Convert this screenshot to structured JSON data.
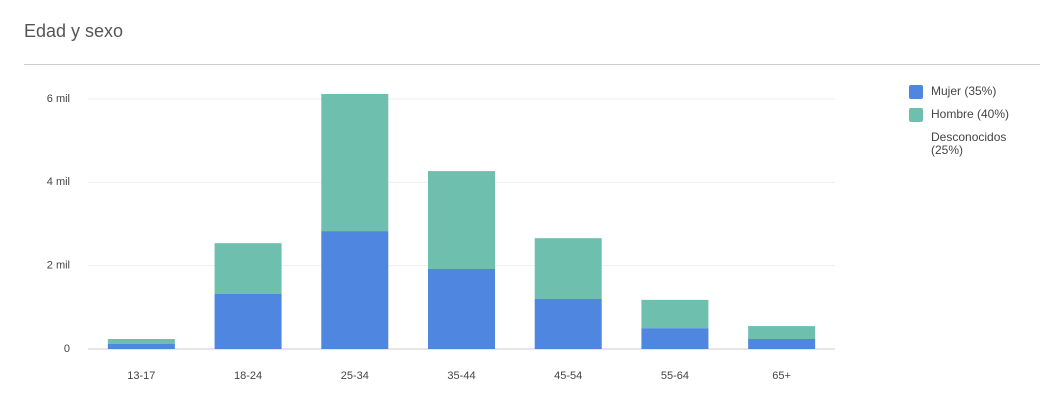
{
  "chart_data": {
    "type": "stacked-bar",
    "title": "Edad y sexo",
    "categories": [
      "13-17",
      "18-24",
      "25-34",
      "35-44",
      "45-54",
      "55-64",
      "65+"
    ],
    "series": [
      {
        "name": "Mujer (35%)",
        "color": "#4f86e0",
        "values": [
          120,
          1320,
          2830,
          1920,
          1200,
          500,
          240
        ]
      },
      {
        "name": "Hombre (40%)",
        "color": "#6fbfae",
        "values": [
          120,
          1220,
          3290,
          2350,
          1460,
          680,
          310
        ]
      }
    ],
    "legend_extra_entries": [
      "Desconocidos (25%)"
    ],
    "ylim": [
      0,
      6000
    ],
    "yticks": [
      0,
      {
        "value": 2000,
        "label": "2 mil"
      },
      {
        "value": 4000,
        "label": "4 mil"
      },
      {
        "value": 6000,
        "label": "6 mil"
      }
    ],
    "grid": true
  }
}
